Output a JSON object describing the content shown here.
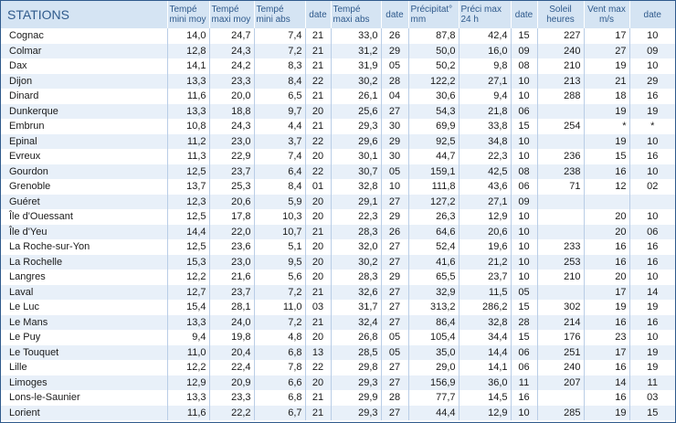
{
  "header": {
    "stations": "STATIONS",
    "cols": [
      "Tempé\nmini moy",
      "Tempé\nmaxi moy",
      "Tempé\nmini abs",
      "date",
      "Tempé\nmaxi abs",
      "date",
      "Précipitat°\nmm",
      "Préci max\n24 h",
      "date",
      "Soleil\nheures",
      "Vent max\nm/s",
      "date"
    ]
  },
  "rows": [
    [
      "Cognac",
      "14,0",
      "24,7",
      "7,4",
      "21",
      "33,0",
      "26",
      "87,8",
      "42,4",
      "15",
      "227",
      "17",
      "10"
    ],
    [
      "Colmar",
      "12,8",
      "24,3",
      "7,2",
      "21",
      "31,2",
      "29",
      "50,0",
      "16,0",
      "09",
      "240",
      "27",
      "09"
    ],
    [
      "Dax",
      "14,1",
      "24,2",
      "8,3",
      "21",
      "31,9",
      "05",
      "50,2",
      "9,8",
      "08",
      "210",
      "19",
      "10"
    ],
    [
      "Dijon",
      "13,3",
      "23,3",
      "8,4",
      "22",
      "30,2",
      "28",
      "122,2",
      "27,1",
      "10",
      "213",
      "21",
      "29"
    ],
    [
      "Dinard",
      "11,6",
      "20,0",
      "6,5",
      "21",
      "26,1",
      "04",
      "30,6",
      "9,4",
      "10",
      "288",
      "18",
      "16"
    ],
    [
      "Dunkerque",
      "13,3",
      "18,8",
      "9,7",
      "20",
      "25,6",
      "27",
      "54,3",
      "21,8",
      "06",
      "",
      "19",
      "19"
    ],
    [
      "Embrun",
      "10,8",
      "24,3",
      "4,4",
      "21",
      "29,3",
      "30",
      "69,9",
      "33,8",
      "15",
      "254",
      "*",
      "*"
    ],
    [
      "Epinal",
      "11,2",
      "23,0",
      "3,7",
      "22",
      "29,6",
      "29",
      "92,5",
      "34,8",
      "10",
      "",
      "19",
      "10"
    ],
    [
      "Evreux",
      "11,3",
      "22,9",
      "7,4",
      "20",
      "30,1",
      "30",
      "44,7",
      "22,3",
      "10",
      "236",
      "15",
      "16"
    ],
    [
      "Gourdon",
      "12,5",
      "23,7",
      "6,4",
      "22",
      "30,7",
      "05",
      "159,1",
      "42,5",
      "08",
      "238",
      "16",
      "10"
    ],
    [
      "Grenoble",
      "13,7",
      "25,3",
      "8,4",
      "01",
      "32,8",
      "10",
      "111,8",
      "43,6",
      "06",
      "71",
      "12",
      "02"
    ],
    [
      "Guéret",
      "12,3",
      "20,6",
      "5,9",
      "20",
      "29,1",
      "27",
      "127,2",
      "27,1",
      "09",
      "",
      "",
      ""
    ],
    [
      "Île d'Ouessant",
      "12,5",
      "17,8",
      "10,3",
      "20",
      "22,3",
      "29",
      "26,3",
      "12,9",
      "10",
      "",
      "20",
      "10"
    ],
    [
      "Île d'Yeu",
      "14,4",
      "22,0",
      "10,7",
      "21",
      "28,3",
      "26",
      "64,6",
      "20,6",
      "10",
      "",
      "20",
      "06"
    ],
    [
      "La Roche-sur-Yon",
      "12,5",
      "23,6",
      "5,1",
      "20",
      "32,0",
      "27",
      "52,4",
      "19,6",
      "10",
      "233",
      "16",
      "16"
    ],
    [
      "La Rochelle",
      "15,3",
      "23,0",
      "9,5",
      "20",
      "30,2",
      "27",
      "41,6",
      "21,2",
      "10",
      "253",
      "16",
      "16"
    ],
    [
      "Langres",
      "12,2",
      "21,6",
      "5,6",
      "20",
      "28,3",
      "29",
      "65,5",
      "23,7",
      "10",
      "210",
      "20",
      "10"
    ],
    [
      "Laval",
      "12,7",
      "23,7",
      "7,2",
      "21",
      "32,6",
      "27",
      "32,9",
      "11,5",
      "05",
      "",
      "17",
      "14"
    ],
    [
      "Le Luc",
      "15,4",
      "28,1",
      "11,0",
      "03",
      "31,7",
      "27",
      "313,2",
      "286,2",
      "15",
      "302",
      "19",
      "19"
    ],
    [
      "Le Mans",
      "13,3",
      "24,0",
      "7,2",
      "21",
      "32,4",
      "27",
      "86,4",
      "32,8",
      "28",
      "214",
      "16",
      "16"
    ],
    [
      "Le Puy",
      "9,4",
      "19,8",
      "4,8",
      "20",
      "26,8",
      "05",
      "105,4",
      "34,4",
      "15",
      "176",
      "23",
      "10"
    ],
    [
      "Le Touquet",
      "11,0",
      "20,4",
      "6,8",
      "13",
      "28,5",
      "05",
      "35,0",
      "14,4",
      "06",
      "251",
      "17",
      "19"
    ],
    [
      "Lille",
      "12,2",
      "22,4",
      "7,8",
      "22",
      "29,8",
      "27",
      "29,0",
      "14,1",
      "06",
      "240",
      "16",
      "19"
    ],
    [
      "Limoges",
      "12,9",
      "20,9",
      "6,6",
      "20",
      "29,3",
      "27",
      "156,9",
      "36,0",
      "11",
      "207",
      "14",
      "11"
    ],
    [
      "Lons-le-Saunier",
      "13,3",
      "23,3",
      "6,8",
      "21",
      "29,9",
      "28",
      "77,7",
      "14,5",
      "16",
      "",
      "16",
      "03"
    ],
    [
      "Lorient",
      "11,6",
      "22,2",
      "6,7",
      "21",
      "29,3",
      "27",
      "44,4",
      "12,9",
      "10",
      "285",
      "19",
      "15"
    ]
  ]
}
